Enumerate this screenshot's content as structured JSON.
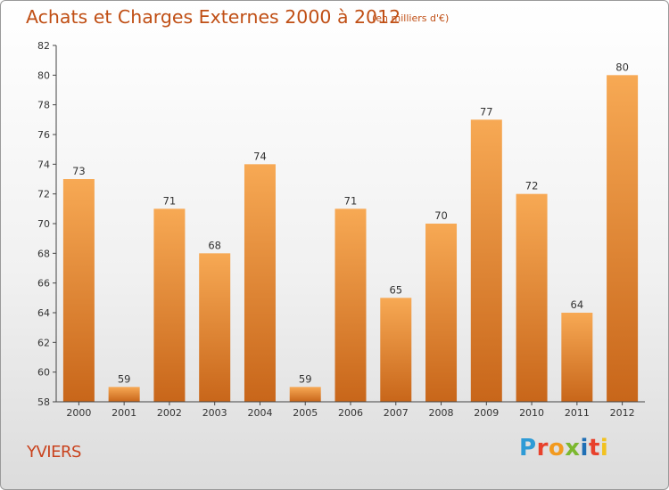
{
  "header": {
    "title": "Achats et Charges Externes 2000 à 2012",
    "subtitle": "(en milliers d'€)"
  },
  "footer": {
    "place": "YVIERS",
    "logo_text": "Proxiti",
    "logo_colors": [
      "#2e9bd6",
      "#e8412c",
      "#f29a1f",
      "#7cb82f",
      "#1f6fb5",
      "#e8412c",
      "#f2c21f"
    ]
  },
  "colors": {
    "bar_top": "#f7a954",
    "bar_bottom": "#c8661a",
    "text": "#333333",
    "title": "#c04f15"
  },
  "chart_data": {
    "type": "bar",
    "title": "Achats et Charges Externes 2000 à 2012",
    "xlabel": "",
    "ylabel": "",
    "categories": [
      "2000",
      "2001",
      "2002",
      "2003",
      "2004",
      "2005",
      "2006",
      "2007",
      "2008",
      "2009",
      "2010",
      "2011",
      "2012"
    ],
    "values": [
      73,
      59,
      71,
      68,
      74,
      59,
      71,
      65,
      70,
      77,
      72,
      64,
      80
    ],
    "ylim": [
      58,
      82
    ],
    "yticks": [
      58,
      60,
      62,
      64,
      66,
      68,
      70,
      72,
      74,
      76,
      78,
      80,
      82
    ],
    "grid": false,
    "legend": "none"
  }
}
